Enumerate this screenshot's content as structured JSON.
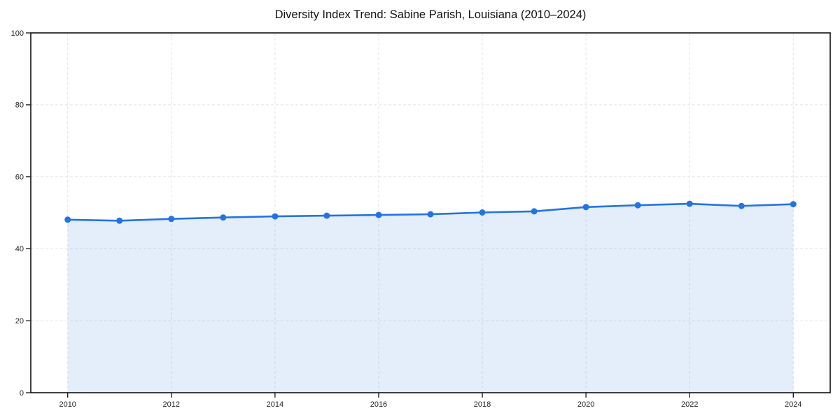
{
  "chart_data": {
    "type": "area",
    "title": "Diversity Index Trend: Sabine Parish, Louisiana (2010–2024)",
    "x": [
      2010,
      2011,
      2012,
      2013,
      2014,
      2015,
      2016,
      2017,
      2018,
      2019,
      2020,
      2021,
      2022,
      2023,
      2024
    ],
    "series": [
      {
        "name": "Diversity Index",
        "values": [
          48.1,
          47.8,
          48.3,
          48.7,
          49.0,
          49.2,
          49.4,
          49.6,
          50.1,
          50.4,
          51.6,
          52.1,
          52.5,
          51.9,
          52.4
        ]
      }
    ],
    "xticks": [
      2010,
      2012,
      2014,
      2016,
      2018,
      2020,
      2022,
      2024
    ],
    "yticks": [
      0,
      20,
      40,
      60,
      80,
      100
    ],
    "ylim": [
      0,
      100
    ],
    "grid": true,
    "grid_style": "dashed",
    "legend": false,
    "xlabel": "",
    "ylabel": "",
    "colors": {
      "line": "#2374e1",
      "marker": "#2374e1",
      "fill": "#2374e1",
      "fill_opacity": 0.12,
      "grid": "#e3e3e3",
      "axis": "#111111",
      "tick_label": "#222222",
      "title": "#111111",
      "background": "#ffffff"
    }
  }
}
